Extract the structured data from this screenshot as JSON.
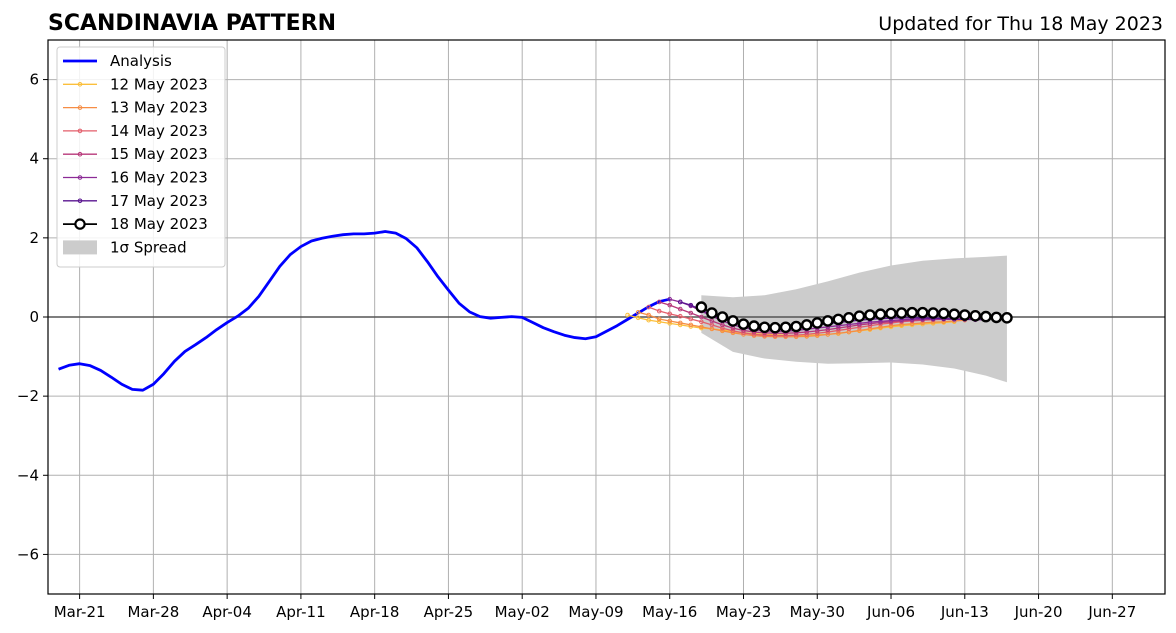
{
  "chart_data": {
    "type": "line",
    "title": "SCANDINAVIA PATTERN",
    "subtitle": "Updated for Thu 18 May 2023",
    "xlabel": "",
    "ylabel": "",
    "ylim": [
      -7,
      7
    ],
    "xlim": [
      "2023-03-18",
      "2023-07-02"
    ],
    "yticks": [
      -6,
      -4,
      -2,
      0,
      2,
      4,
      6
    ],
    "ytick_labels": [
      "−6",
      "−4",
      "−2",
      "0",
      "2",
      "4",
      "6"
    ],
    "xticks": [
      "2023-03-21",
      "2023-03-28",
      "2023-04-04",
      "2023-04-11",
      "2023-04-18",
      "2023-04-25",
      "2023-05-02",
      "2023-05-09",
      "2023-05-16",
      "2023-05-23",
      "2023-05-30",
      "2023-06-06",
      "2023-06-13",
      "2023-06-20",
      "2023-06-27"
    ],
    "xtick_labels": [
      "Mar-21",
      "Mar-28",
      "Apr-04",
      "Apr-11",
      "Apr-18",
      "Apr-25",
      "May-02",
      "May-09",
      "May-16",
      "May-23",
      "May-30",
      "Jun-06",
      "Jun-13",
      "Jun-20",
      "Jun-27"
    ],
    "grid": true,
    "zero_line": true,
    "legend_position": "top-left",
    "analysis": {
      "name": "Analysis",
      "color": "#0000ff",
      "x": [
        "2023-03-19",
        "2023-03-20",
        "2023-03-21",
        "2023-03-22",
        "2023-03-23",
        "2023-03-24",
        "2023-03-25",
        "2023-03-26",
        "2023-03-27",
        "2023-03-28",
        "2023-03-29",
        "2023-03-30",
        "2023-03-31",
        "2023-04-01",
        "2023-04-02",
        "2023-04-03",
        "2023-04-04",
        "2023-04-05",
        "2023-04-06",
        "2023-04-07",
        "2023-04-08",
        "2023-04-09",
        "2023-04-10",
        "2023-04-11",
        "2023-04-12",
        "2023-04-13",
        "2023-04-14",
        "2023-04-15",
        "2023-04-16",
        "2023-04-17",
        "2023-04-18",
        "2023-04-19",
        "2023-04-20",
        "2023-04-21",
        "2023-04-22",
        "2023-04-23",
        "2023-04-24",
        "2023-04-25",
        "2023-04-26",
        "2023-04-27",
        "2023-04-28",
        "2023-04-29",
        "2023-04-30",
        "2023-05-01",
        "2023-05-02",
        "2023-05-03",
        "2023-05-04",
        "2023-05-05",
        "2023-05-06",
        "2023-05-07",
        "2023-05-08",
        "2023-05-09",
        "2023-05-10",
        "2023-05-11",
        "2023-05-12",
        "2023-05-13",
        "2023-05-14",
        "2023-05-15",
        "2023-05-16"
      ],
      "values": [
        -1.32,
        -1.22,
        -1.18,
        -1.23,
        -1.35,
        -1.52,
        -1.7,
        -1.83,
        -1.85,
        -1.7,
        -1.43,
        -1.12,
        -0.87,
        -0.7,
        -0.52,
        -0.32,
        -0.14,
        0.02,
        0.22,
        0.52,
        0.9,
        1.28,
        1.58,
        1.78,
        1.92,
        1.99,
        2.04,
        2.08,
        2.1,
        2.1,
        2.12,
        2.16,
        2.12,
        1.98,
        1.75,
        1.4,
        1.02,
        0.68,
        0.35,
        0.13,
        0.01,
        -0.03,
        -0.01,
        0.01,
        -0.01,
        -0.14,
        -0.27,
        -0.37,
        -0.46,
        -0.52,
        -0.55,
        -0.5,
        -0.36,
        -0.22,
        -0.06,
        0.1,
        0.26,
        0.39,
        0.45
      ]
    },
    "spread": {
      "name": "1σ Spread",
      "color": "#cccccc",
      "x": [
        "2023-05-19",
        "2023-05-22",
        "2023-05-25",
        "2023-05-28",
        "2023-05-31",
        "2023-06-03",
        "2023-06-06",
        "2023-06-09",
        "2023-06-12",
        "2023-06-15",
        "2023-06-17"
      ],
      "upper": [
        0.55,
        0.5,
        0.55,
        0.7,
        0.9,
        1.12,
        1.3,
        1.42,
        1.48,
        1.52,
        1.55
      ],
      "lower": [
        -0.4,
        -0.88,
        -1.05,
        -1.13,
        -1.18,
        -1.17,
        -1.15,
        -1.2,
        -1.3,
        -1.48,
        -1.65
      ]
    },
    "series": [
      {
        "name": "12 May 2023",
        "color": "#fbbf3b",
        "marker": "small",
        "x": [
          "2023-05-12",
          "2023-05-13",
          "2023-05-14",
          "2023-05-15",
          "2023-05-16",
          "2023-05-17",
          "2023-05-18",
          "2023-05-19",
          "2023-05-20",
          "2023-05-21",
          "2023-05-22",
          "2023-05-23",
          "2023-05-24",
          "2023-05-25",
          "2023-05-26",
          "2023-05-27",
          "2023-05-28",
          "2023-05-29",
          "2023-05-30",
          "2023-05-31",
          "2023-06-01",
          "2023-06-02",
          "2023-06-03",
          "2023-06-04",
          "2023-06-05",
          "2023-06-06",
          "2023-06-07",
          "2023-06-08",
          "2023-06-09",
          "2023-06-10",
          "2023-06-11",
          "2023-06-12"
        ],
        "values": [
          0.05,
          -0.02,
          -0.08,
          -0.12,
          -0.16,
          -0.2,
          -0.24,
          -0.28,
          -0.3,
          -0.33,
          -0.37,
          -0.4,
          -0.42,
          -0.44,
          -0.45,
          -0.46,
          -0.47,
          -0.47,
          -0.45,
          -0.44,
          -0.42,
          -0.38,
          -0.35,
          -0.32,
          -0.28,
          -0.25,
          -0.22,
          -0.2,
          -0.18,
          -0.16,
          -0.14,
          -0.12
        ]
      },
      {
        "name": "13 May 2023",
        "color": "#f68d45",
        "marker": "small",
        "x": [
          "2023-05-13",
          "2023-05-14",
          "2023-05-15",
          "2023-05-16",
          "2023-05-17",
          "2023-05-18",
          "2023-05-19",
          "2023-05-20",
          "2023-05-21",
          "2023-05-22",
          "2023-05-23",
          "2023-05-24",
          "2023-05-25",
          "2023-05-26",
          "2023-05-27",
          "2023-05-28",
          "2023-05-29",
          "2023-05-30",
          "2023-05-31",
          "2023-06-01",
          "2023-06-02",
          "2023-06-03",
          "2023-06-04",
          "2023-06-05",
          "2023-06-06",
          "2023-06-07",
          "2023-06-08",
          "2023-06-09",
          "2023-06-10",
          "2023-06-11",
          "2023-06-12",
          "2023-06-13"
        ],
        "values": [
          0.12,
          0.05,
          -0.05,
          -0.1,
          -0.15,
          -0.2,
          -0.25,
          -0.3,
          -0.35,
          -0.4,
          -0.44,
          -0.47,
          -0.49,
          -0.5,
          -0.5,
          -0.5,
          -0.49,
          -0.47,
          -0.44,
          -0.41,
          -0.38,
          -0.34,
          -0.3,
          -0.26,
          -0.22,
          -0.19,
          -0.17,
          -0.15,
          -0.13,
          -0.12,
          -0.1,
          -0.08
        ]
      },
      {
        "name": "14 May 2023",
        "color": "#e35d6a",
        "marker": "small",
        "x": [
          "2023-05-14",
          "2023-05-15",
          "2023-05-16",
          "2023-05-17",
          "2023-05-18",
          "2023-05-19",
          "2023-05-20",
          "2023-05-21",
          "2023-05-22",
          "2023-05-23",
          "2023-05-24",
          "2023-05-25",
          "2023-05-26",
          "2023-05-27",
          "2023-05-28",
          "2023-05-29",
          "2023-05-30",
          "2023-05-31",
          "2023-06-01",
          "2023-06-02",
          "2023-06-03",
          "2023-06-04",
          "2023-06-05",
          "2023-06-06",
          "2023-06-07",
          "2023-06-08",
          "2023-06-09",
          "2023-06-10",
          "2023-06-11",
          "2023-06-12",
          "2023-06-13",
          "2023-06-14"
        ],
        "values": [
          0.25,
          0.15,
          0.08,
          0.02,
          -0.05,
          -0.12,
          -0.2,
          -0.28,
          -0.35,
          -0.4,
          -0.44,
          -0.46,
          -0.47,
          -0.47,
          -0.46,
          -0.44,
          -0.41,
          -0.38,
          -0.34,
          -0.3,
          -0.26,
          -0.22,
          -0.18,
          -0.15,
          -0.12,
          -0.1,
          -0.08,
          -0.07,
          -0.06,
          -0.05,
          -0.04,
          -0.03
        ]
      },
      {
        "name": "15 May 2023",
        "color": "#b73779",
        "marker": "small",
        "x": [
          "2023-05-15",
          "2023-05-16",
          "2023-05-17",
          "2023-05-18",
          "2023-05-19",
          "2023-05-20",
          "2023-05-21",
          "2023-05-22",
          "2023-05-23",
          "2023-05-24",
          "2023-05-25",
          "2023-05-26",
          "2023-05-27",
          "2023-05-28",
          "2023-05-29",
          "2023-05-30",
          "2023-05-31",
          "2023-06-01",
          "2023-06-02",
          "2023-06-03",
          "2023-06-04",
          "2023-06-05",
          "2023-06-06",
          "2023-06-07",
          "2023-06-08",
          "2023-06-09",
          "2023-06-10",
          "2023-06-11",
          "2023-06-12",
          "2023-06-13",
          "2023-06-14"
        ],
        "values": [
          0.38,
          0.3,
          0.2,
          0.1,
          0.0,
          -0.1,
          -0.2,
          -0.28,
          -0.34,
          -0.38,
          -0.4,
          -0.41,
          -0.41,
          -0.4,
          -0.38,
          -0.35,
          -0.32,
          -0.28,
          -0.24,
          -0.2,
          -0.17,
          -0.14,
          -0.12,
          -0.1,
          -0.08,
          -0.07,
          -0.06,
          -0.05,
          -0.05,
          -0.05,
          -0.05
        ]
      },
      {
        "name": "16 May 2023",
        "color": "#8c2a96",
        "marker": "small",
        "x": [
          "2023-05-16",
          "2023-05-17",
          "2023-05-18",
          "2023-05-19",
          "2023-05-20",
          "2023-05-21",
          "2023-05-22",
          "2023-05-23",
          "2023-05-24",
          "2023-05-25",
          "2023-05-26",
          "2023-05-27",
          "2023-05-28",
          "2023-05-29",
          "2023-05-30",
          "2023-05-31",
          "2023-06-01",
          "2023-06-02",
          "2023-06-03",
          "2023-06-04",
          "2023-06-05",
          "2023-06-06",
          "2023-06-07",
          "2023-06-08",
          "2023-06-09",
          "2023-06-10",
          "2023-06-11",
          "2023-06-12",
          "2023-06-13",
          "2023-06-14",
          "2023-06-15"
        ],
        "values": [
          0.45,
          0.38,
          0.28,
          0.15,
          0.02,
          -0.1,
          -0.2,
          -0.27,
          -0.32,
          -0.35,
          -0.36,
          -0.36,
          -0.34,
          -0.31,
          -0.28,
          -0.25,
          -0.22,
          -0.19,
          -0.16,
          -0.13,
          -0.11,
          -0.09,
          -0.07,
          -0.06,
          -0.05,
          -0.05,
          -0.05,
          -0.06,
          -0.06,
          -0.07,
          -0.07
        ]
      },
      {
        "name": "17 May 2023",
        "color": "#5a1490",
        "marker": "small",
        "x": [
          "2023-05-17",
          "2023-05-18",
          "2023-05-19",
          "2023-05-20",
          "2023-05-21",
          "2023-05-22",
          "2023-05-23",
          "2023-05-24",
          "2023-05-25",
          "2023-05-26",
          "2023-05-27",
          "2023-05-28",
          "2023-05-29",
          "2023-05-30",
          "2023-05-31",
          "2023-06-01",
          "2023-06-02",
          "2023-06-03",
          "2023-06-04",
          "2023-06-05",
          "2023-06-06",
          "2023-06-07",
          "2023-06-08",
          "2023-06-09",
          "2023-06-10",
          "2023-06-11",
          "2023-06-12",
          "2023-06-13",
          "2023-06-14",
          "2023-06-15"
        ],
        "values": [
          0.38,
          0.3,
          0.18,
          0.05,
          -0.05,
          -0.12,
          -0.18,
          -0.22,
          -0.24,
          -0.25,
          -0.25,
          -0.24,
          -0.22,
          -0.2,
          -0.17,
          -0.14,
          -0.11,
          -0.08,
          -0.06,
          -0.04,
          -0.03,
          -0.02,
          -0.02,
          -0.02,
          -0.03,
          -0.04,
          -0.05,
          -0.06,
          -0.06,
          -0.07
        ]
      },
      {
        "name": "18 May 2023",
        "color": "#000000",
        "marker": "large",
        "x": [
          "2023-05-19",
          "2023-05-20",
          "2023-05-21",
          "2023-05-22",
          "2023-05-23",
          "2023-05-24",
          "2023-05-25",
          "2023-05-26",
          "2023-05-27",
          "2023-05-28",
          "2023-05-29",
          "2023-05-30",
          "2023-05-31",
          "2023-06-01",
          "2023-06-02",
          "2023-06-03",
          "2023-06-04",
          "2023-06-05",
          "2023-06-06",
          "2023-06-07",
          "2023-06-08",
          "2023-06-09",
          "2023-06-10",
          "2023-06-11",
          "2023-06-12",
          "2023-06-13",
          "2023-06-14",
          "2023-06-15",
          "2023-06-16",
          "2023-06-17"
        ],
        "values": [
          0.25,
          0.1,
          0.0,
          -0.1,
          -0.18,
          -0.23,
          -0.26,
          -0.27,
          -0.26,
          -0.24,
          -0.2,
          -0.15,
          -0.1,
          -0.06,
          -0.02,
          0.02,
          0.05,
          0.07,
          0.09,
          0.1,
          0.11,
          0.11,
          0.1,
          0.09,
          0.07,
          0.05,
          0.03,
          0.01,
          -0.01,
          -0.02
        ]
      }
    ]
  }
}
